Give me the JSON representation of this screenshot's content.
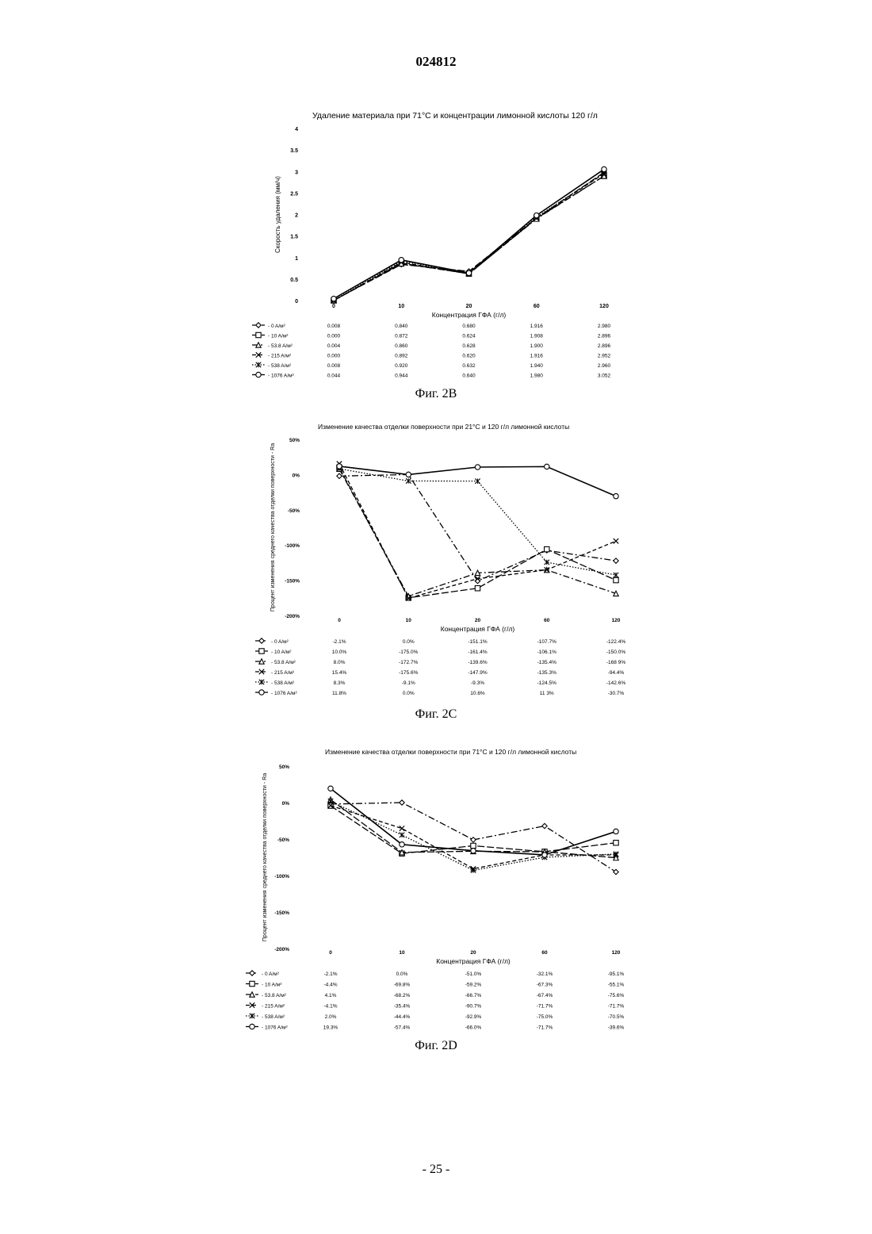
{
  "header": {
    "doc_number": "024812"
  },
  "footer": {
    "page": "- 25 -"
  },
  "figures": [
    {
      "caption": "Фиг. 2B",
      "title": "Удаление материала при 71°C и концентрации лимонной кислоты 120 г/л"
    },
    {
      "caption": "Фиг. 2C",
      "title": "Изменение качества отделки поверхности при 21°C и 120 г/л лимонной кислоты"
    },
    {
      "caption": "Фиг. 2D",
      "title": "Изменение качества отделки поверхности при 71°C и 120 г/л лимонной кислоты"
    }
  ],
  "chart_data": [
    {
      "type": "line",
      "title": "Удаление материала при 71°C и концентрации лимонной кислоты 120 г/л",
      "xlabel": "Концентрация ГФА (г/л)",
      "ylabel": "Скорость удаления (мм/ч)",
      "categories": [
        "0",
        "10",
        "20",
        "60",
        "120"
      ],
      "yticks": [
        "4",
        "3.5",
        "3",
        "2.5",
        "2",
        "1.5",
        "1",
        "0.5",
        "0"
      ],
      "ylim": [
        0,
        4
      ],
      "legend_position": "table-below",
      "series": [
        {
          "name": "0 A/м²",
          "marker": "diamond",
          "dash": "long-dash",
          "values": [
            0.008,
            0.84,
            0.68,
            1.916,
            2.98
          ],
          "labels": [
            "0.008",
            "0.840",
            "0.680",
            "1.916",
            "2.980"
          ]
        },
        {
          "name": "10 A/м²",
          "marker": "square",
          "dash": "long-dash",
          "values": [
            0.0,
            0.872,
            0.624,
            1.908,
            2.896
          ],
          "labels": [
            "0.000",
            "0.872",
            "0.624",
            "1.908",
            "2.896"
          ]
        },
        {
          "name": "53.8 A/м²",
          "marker": "triangle",
          "dash": "dash-dot",
          "values": [
            0.004,
            0.86,
            0.628,
            1.9,
            2.896
          ],
          "labels": [
            "0.004",
            "0.860",
            "0.628",
            "1.900",
            "2.896"
          ]
        },
        {
          "name": "215 A/м²",
          "marker": "x",
          "dash": "dash",
          "values": [
            0.0,
            0.892,
            0.62,
            1.916,
            2.952
          ],
          "labels": [
            "0.000",
            "0.892",
            "0.620",
            "1.916",
            "2.952"
          ]
        },
        {
          "name": "538 A/м²",
          "marker": "star",
          "dash": "dot",
          "values": [
            0.008,
            0.92,
            0.632,
            1.94,
            2.96
          ],
          "labels": [
            "0.008",
            "0.920",
            "0.632",
            "1.940",
            "2.960"
          ]
        },
        {
          "name": "1076 A/м²",
          "marker": "circle",
          "dash": "solid",
          "values": [
            0.044,
            0.944,
            0.64,
            1.98,
            3.052
          ],
          "labels": [
            "0.044",
            "0.944",
            "0.640",
            "1.980",
            "3.052"
          ]
        }
      ]
    },
    {
      "type": "line",
      "title": "Изменение качества отделки поверхности при 21°C и 120 г/л лимонной кислоты",
      "xlabel": "Концентрация ГФА (г/л)",
      "ylabel": "Процент изменения среднего качества отделки поверхности - Ra",
      "categories": [
        "0",
        "10",
        "20",
        "60",
        "120"
      ],
      "yticks": [
        "50%",
        "0%",
        "-50%",
        "-100%",
        "-150%",
        "-200%"
      ],
      "ylim": [
        -200,
        50
      ],
      "legend_position": "table-below",
      "series": [
        {
          "name": "0 A/м²",
          "marker": "diamond",
          "dash": "dash-dot",
          "values": [
            -2.1,
            0.0,
            -151.1,
            -107.7,
            -122.4
          ],
          "labels": [
            "-2.1%",
            "0.0%",
            "-151.1%",
            "-107.7%",
            "-122.4%"
          ]
        },
        {
          "name": "10 A/м²",
          "marker": "square",
          "dash": "long-dash",
          "values": [
            10.0,
            -175.0,
            -161.4,
            -106.1,
            -150.0
          ],
          "labels": [
            "10.0%",
            "-175.0%",
            "-161.4%",
            "-106.1%",
            "-150.0%"
          ]
        },
        {
          "name": "53.8 A/м²",
          "marker": "triangle",
          "dash": "dash-dot",
          "values": [
            8.0,
            -172.7,
            -139.6,
            -135.4,
            -168.9
          ],
          "labels": [
            "8.0%",
            "-172.7%",
            "-139.6%",
            "-135.4%",
            "-168 9%"
          ]
        },
        {
          "name": "215 A/м²",
          "marker": "x",
          "dash": "dash",
          "values": [
            15.4,
            -175.6,
            -147.9,
            -135.3,
            -94.4
          ],
          "labels": [
            "15.4%",
            "-175.6%",
            "-147.9%",
            "-135.3%",
            "-94.4%"
          ]
        },
        {
          "name": "538 A/м²",
          "marker": "star",
          "dash": "dot",
          "values": [
            8.3,
            -9.1,
            -9.3,
            -124.5,
            -142.6
          ],
          "labels": [
            "8.3%",
            "-9.1%",
            "-9.3%",
            "-124.5%",
            "-142.6%"
          ]
        },
        {
          "name": "1076 A/м²",
          "marker": "circle",
          "dash": "solid",
          "values": [
            11.8,
            0.0,
            10.6,
            11.3,
            -30.7
          ],
          "labels": [
            "11.8%",
            "0.0%",
            "10.6%",
            "11 3%",
            "-30.7%"
          ]
        }
      ]
    },
    {
      "type": "line",
      "title": "Изменение качества отделки поверхности при 71°C и 120 г/л лимонной кислоты",
      "xlabel": "Концентрация ГФА (г/л)",
      "ylabel": "Процент изменения среднего качества отделки поверхности - Ra",
      "categories": [
        "0",
        "10",
        "20",
        "60",
        "120"
      ],
      "yticks": [
        "50%",
        "0%",
        "-50%",
        "-100%",
        "-150%",
        "-200%"
      ],
      "ylim": [
        -200,
        50
      ],
      "legend_position": "table-below",
      "series": [
        {
          "name": "0 A/м²",
          "marker": "diamond",
          "dash": "dash-dot",
          "values": [
            -2.1,
            0.0,
            -51.0,
            -32.1,
            -95.1
          ],
          "labels": [
            "-2.1%",
            "0.0%",
            "-51.0%",
            "-32.1%",
            "-95.1%"
          ]
        },
        {
          "name": "10 A/м²",
          "marker": "square",
          "dash": "long-dash",
          "values": [
            -4.4,
            -69.8,
            -59.2,
            -67.3,
            -55.1
          ],
          "labels": [
            "-4.4%",
            "-69.8%",
            "-59.2%",
            "-67.3%",
            "-55.1%"
          ]
        },
        {
          "name": "53.8 A/м²",
          "marker": "triangle",
          "dash": "long-dash",
          "values": [
            4.1,
            -68.2,
            -66.7,
            -67.4,
            -75.6
          ],
          "labels": [
            "4.1%",
            "-68.2%",
            "-66.7%",
            "-67.4%",
            "-75.6%"
          ]
        },
        {
          "name": "215 A/м²",
          "marker": "x",
          "dash": "dash",
          "values": [
            -4.1,
            -35.4,
            -90.7,
            -71.7,
            -71.7
          ],
          "labels": [
            "-4.1%",
            "-35.4%",
            "-90.7%",
            "-71.7%",
            "-71.7%"
          ]
        },
        {
          "name": "538 A/м²",
          "marker": "star",
          "dash": "dot",
          "values": [
            2.0,
            -44.4,
            -92.9,
            -75.0,
            -70.5
          ],
          "labels": [
            "2.0%",
            "-44.4%",
            "-92.9%",
            "-75.0%",
            "-70.5%"
          ]
        },
        {
          "name": "1076 A/м²",
          "marker": "circle",
          "dash": "solid",
          "values": [
            19.3,
            -57.4,
            -66.0,
            -71.7,
            -39.6
          ],
          "labels": [
            "19.3%",
            "-57.4%",
            "-66.0%",
            "-71.7%",
            "-39.6%"
          ]
        }
      ]
    }
  ]
}
